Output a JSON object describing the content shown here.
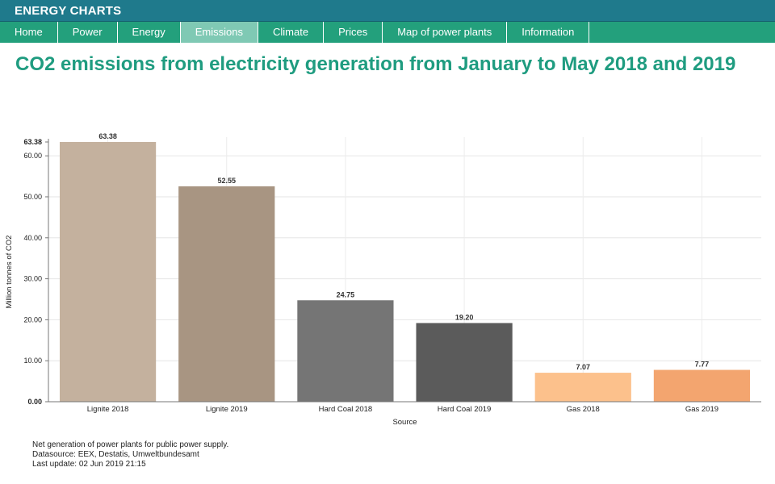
{
  "header": {
    "brand": "ENERGY CHARTS"
  },
  "nav": {
    "items": [
      {
        "label": "Home"
      },
      {
        "label": "Power"
      },
      {
        "label": "Energy"
      },
      {
        "label": "Emissions",
        "active": true
      },
      {
        "label": "Climate"
      },
      {
        "label": "Prices"
      },
      {
        "label": "Map of power plants"
      },
      {
        "label": "Information"
      }
    ]
  },
  "page": {
    "title": "CO2 emissions from electricity generation from January to May 2018 and 2019"
  },
  "chart_data": {
    "type": "bar",
    "title": "",
    "xlabel": "Source",
    "ylabel": "Million tonnes of CO2",
    "ylim": [
      0,
      63.38
    ],
    "y_ticks": [
      "0.00",
      "10.00",
      "20.00",
      "30.00",
      "40.00",
      "50.00",
      "60.00"
    ],
    "y_ticks_values": [
      0,
      10,
      20,
      30,
      40,
      50,
      60
    ],
    "y_max_label": "63.38",
    "grid": true,
    "categories": [
      "Lignite 2018",
      "Lignite 2019",
      "Hard Coal 2018",
      "Hard Coal 2019",
      "Gas 2018",
      "Gas 2019"
    ],
    "values": [
      63.38,
      52.55,
      24.75,
      19.2,
      7.07,
      7.77
    ],
    "value_labels": [
      "63.38",
      "52.55",
      "24.75",
      "19.20",
      "7.07",
      "7.77"
    ],
    "colors": [
      "#c4b19e",
      "#a89582",
      "#757575",
      "#5b5b5b",
      "#fcc18c",
      "#f3a56f"
    ]
  },
  "footer": {
    "line1": "Net generation of power plants for public power supply.",
    "line2": "Datasource: EEX, Destatis, Umweltbundesamt",
    "line3": "Last update: 02 Jun 2019 21:15"
  }
}
